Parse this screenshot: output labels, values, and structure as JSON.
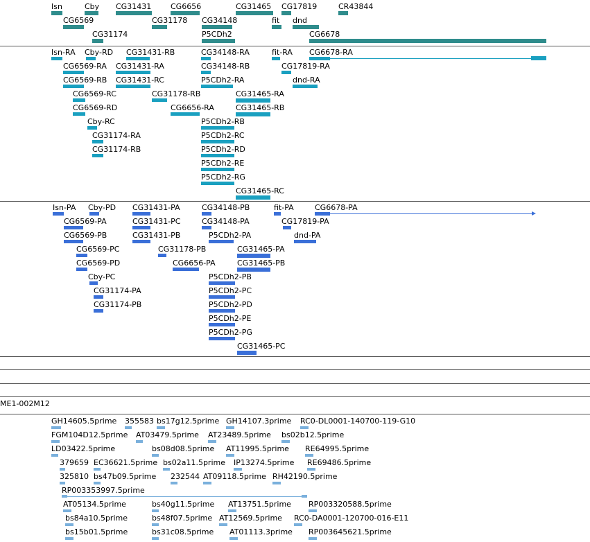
{
  "colors": {
    "gene": "#2f8c8c",
    "transcript": "#1aa0c0",
    "protein": "#3a6fd8",
    "est": "#7ab0dc",
    "separator": "#555555"
  },
  "tracks": {
    "genes": {
      "labels": [
        {
          "text": "Isn"
        },
        {
          "text": "Cby"
        },
        {
          "text": "CG31431"
        },
        {
          "text": "CG6656"
        },
        {
          "text": "CG31465"
        },
        {
          "text": "CG17819"
        },
        {
          "text": "CR43844"
        },
        {
          "text": "CG6569"
        },
        {
          "text": "CG31178"
        },
        {
          "text": "CG34148"
        },
        {
          "text": "fit"
        },
        {
          "text": "dnd"
        },
        {
          "text": "CG31174"
        },
        {
          "text": "P5CDh2"
        },
        {
          "text": "CG6678"
        }
      ]
    },
    "transcripts": {
      "labels": [
        {
          "text": "Isn-RA"
        },
        {
          "text": "Cby-RD"
        },
        {
          "text": "CG31431-RB"
        },
        {
          "text": "CG34148-RA"
        },
        {
          "text": "fit-RA"
        },
        {
          "text": "CG6678-RA"
        },
        {
          "text": "CG6569-RA"
        },
        {
          "text": "CG31431-RA"
        },
        {
          "text": "CG34148-RB"
        },
        {
          "text": "CG17819-RA"
        },
        {
          "text": "CG6569-RB"
        },
        {
          "text": "CG31431-RC"
        },
        {
          "text": "P5CDh2-RA"
        },
        {
          "text": "dnd-RA"
        },
        {
          "text": "CG6569-RC"
        },
        {
          "text": "CG31178-RB"
        },
        {
          "text": "CG31465-RA"
        },
        {
          "text": "CG6569-RD"
        },
        {
          "text": "CG6656-RA"
        },
        {
          "text": "CG31465-RB"
        },
        {
          "text": "Cby-RC"
        },
        {
          "text": "P5CDh2-RB"
        },
        {
          "text": "CG31174-RA"
        },
        {
          "text": "P5CDh2-RC"
        },
        {
          "text": "CG31174-RB"
        },
        {
          "text": "P5CDh2-RD"
        },
        {
          "text": "P5CDh2-RE"
        },
        {
          "text": "P5CDh2-RG"
        },
        {
          "text": "CG31465-RC"
        }
      ]
    },
    "proteins": {
      "labels": [
        {
          "text": "Isn-PA"
        },
        {
          "text": "Cby-PD"
        },
        {
          "text": "CG31431-PA"
        },
        {
          "text": "CG34148-PB"
        },
        {
          "text": "fit-PA"
        },
        {
          "text": "CG6678-PA"
        },
        {
          "text": "CG6569-PA"
        },
        {
          "text": "CG31431-PC"
        },
        {
          "text": "CG34148-PA"
        },
        {
          "text": "CG17819-PA"
        },
        {
          "text": "CG6569-PB"
        },
        {
          "text": "CG31431-PB"
        },
        {
          "text": "P5CDh2-PA"
        },
        {
          "text": "dnd-PA"
        },
        {
          "text": "CG6569-PC"
        },
        {
          "text": "CG31178-PB"
        },
        {
          "text": "CG31465-PA"
        },
        {
          "text": "CG6569-PD"
        },
        {
          "text": "CG6656-PA"
        },
        {
          "text": "CG31465-PB"
        },
        {
          "text": "Cby-PC"
        },
        {
          "text": "P5CDh2-PB"
        },
        {
          "text": "CG31174-PA"
        },
        {
          "text": "P5CDh2-PC"
        },
        {
          "text": "CG31174-PB"
        },
        {
          "text": "P5CDh2-PD"
        },
        {
          "text": "P5CDh2-PE"
        },
        {
          "text": "P5CDh2-PG"
        },
        {
          "text": "CG31465-PC"
        }
      ]
    },
    "clone": {
      "label": "ME1-002M12"
    },
    "ests": {
      "labels": [
        {
          "text": "GH14605.5prime"
        },
        {
          "text": "355583"
        },
        {
          "text": "bs17g12.5prime"
        },
        {
          "text": "GH14107.3prime"
        },
        {
          "text": "RC0-DL0001-140700-119-G10"
        },
        {
          "text": "FGM104D12.5prime"
        },
        {
          "text": "AT03479.5prime"
        },
        {
          "text": "AT23489.5prime"
        },
        {
          "text": "bs02b12.5prime"
        },
        {
          "text": "LD03422.5prime"
        },
        {
          "text": "bs08d08.5prime"
        },
        {
          "text": "AT11995.5prime"
        },
        {
          "text": "RE64995.5prime"
        },
        {
          "text": "379659"
        },
        {
          "text": "EC36621.5prime"
        },
        {
          "text": "bs02a11.5prime"
        },
        {
          "text": "IP13274.5prime"
        },
        {
          "text": "RE69486.5prime"
        },
        {
          "text": "325810"
        },
        {
          "text": "bs47b09.5prime"
        },
        {
          "text": "232544"
        },
        {
          "text": "AT09118.5prime"
        },
        {
          "text": "RH42190.5prime"
        },
        {
          "text": "RP003353997.5prime"
        },
        {
          "text": "AT05134.5prime"
        },
        {
          "text": "bs40g11.5prime"
        },
        {
          "text": "AT13751.5prime"
        },
        {
          "text": "RP003320588.5prime"
        },
        {
          "text": "bs84a10.5prime"
        },
        {
          "text": "bs48f07.5prime"
        },
        {
          "text": "AT12569.5prime"
        },
        {
          "text": "RC0-DA0001-120700-016-E11"
        },
        {
          "text": "bs15b01.5prime"
        },
        {
          "text": "bs31c08.5prime"
        },
        {
          "text": "AT01113.3prime"
        },
        {
          "text": "RP003645621.5prime"
        }
      ]
    }
  }
}
